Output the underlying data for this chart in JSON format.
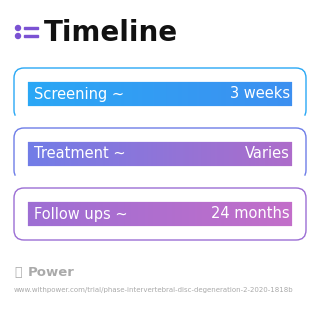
{
  "title": "Timeline",
  "title_fontsize": 20,
  "title_color": "#111111",
  "icon_color": "#7b52d3",
  "background_color": "#ffffff",
  "rows": [
    {
      "label": "Screening ~",
      "value": "3 weeks",
      "color_left": "#29a8f5",
      "color_right": "#3d8ef0"
    },
    {
      "label": "Treatment ~",
      "value": "Varies",
      "color_left": "#6e7de8",
      "color_right": "#b06bc8"
    },
    {
      "label": "Follow ups ~",
      "value": "24 months",
      "color_left": "#9b6ed4",
      "color_right": "#c46ec8"
    }
  ],
  "label_fontsize": 10.5,
  "value_fontsize": 10.5,
  "footer_text": "Power",
  "footer_url": "www.withpower.com/trial/phase-intervertebral-disc-degeneration-2-2020-1818b",
  "footer_fontsize": 5.0,
  "footer_color": "#aaaaaa",
  "power_icon_color": "#aaaaaa"
}
